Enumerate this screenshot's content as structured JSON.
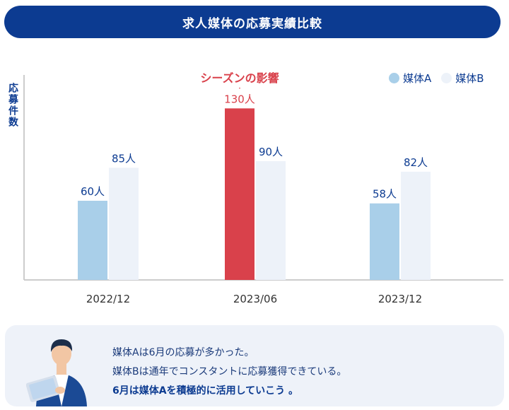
{
  "title": "求人媒体の応募実績比較",
  "colors": {
    "media_a": "#a9cfe9",
    "media_b": "#edf2f9",
    "highlight": "#d9414b",
    "navy": "#0c3b91",
    "axis": "#cccccc"
  },
  "chart_data": {
    "type": "bar",
    "title": "求人媒体の応募実績比較",
    "ylabel": "応募件数",
    "xlabel": "",
    "categories": [
      "2022/12",
      "2023/06",
      "2023/12"
    ],
    "series": [
      {
        "name": "媒体A",
        "values": [
          60,
          130,
          58
        ],
        "labels": [
          "60人",
          "130人",
          "58人"
        ]
      },
      {
        "name": "媒体B",
        "values": [
          85,
          90,
          82
        ],
        "labels": [
          "85人",
          "90人",
          "82人"
        ]
      }
    ],
    "ylim": [
      0,
      150
    ],
    "grid": false,
    "legend": "top-right",
    "highlight": {
      "series": 0,
      "category": 1,
      "annotation": "シーズンの影響"
    }
  },
  "info": {
    "line1": "媒体Aは6月の応募が多かった。",
    "line2": "媒体Bは通年でコンスタントに応募獲得できている。",
    "line3": "6月は媒体Aを積極的に活用していこう 。"
  },
  "icons": {
    "person": "person-with-tablet-icon"
  }
}
